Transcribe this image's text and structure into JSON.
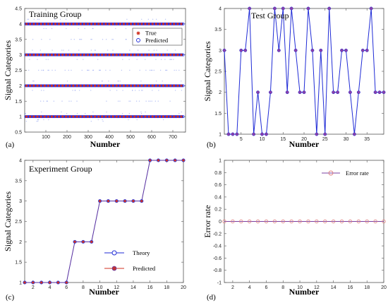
{
  "chart_data": [
    {
      "type": "scatter",
      "panel_label": "(a)",
      "title": "Training Group",
      "xlabel": "Number",
      "ylabel": "Signal Categories",
      "xlim": [
        0,
        760
      ],
      "ylim": [
        0.5,
        4.5
      ],
      "xticks": [
        100,
        200,
        300,
        400,
        500,
        600,
        700
      ],
      "yticks": [
        0.5,
        1,
        1.5,
        2,
        2.5,
        3,
        3.5,
        4,
        4.5
      ],
      "ytick_labels": [
        "0.5",
        "1",
        "1.5",
        "2",
        "2.5",
        "3",
        "3.5",
        "4",
        "4.5"
      ],
      "legend_position": "upper-right",
      "series": [
        {
          "name": "True",
          "marker": "asterisk",
          "color": "#d03020",
          "x_range": [
            1,
            750
          ],
          "y_levels": [
            1,
            2,
            3,
            4
          ]
        },
        {
          "name": "Predicted",
          "marker": "circle",
          "color": "#1f2bd6",
          "x_range": [
            1,
            750
          ],
          "y_levels": [
            1,
            2,
            3,
            4
          ]
        }
      ]
    },
    {
      "type": "line",
      "panel_label": "(b)",
      "title": "Test Group",
      "xlabel": "Number",
      "ylabel": "Signal Categories",
      "xlim": [
        1,
        39
      ],
      "ylim": [
        1,
        4
      ],
      "xticks": [
        5,
        10,
        15,
        20,
        25,
        30,
        35
      ],
      "yticks": [
        1,
        1.5,
        2,
        2.5,
        3,
        3.5,
        4
      ],
      "ytick_labels": [
        "1",
        "1.5",
        "2",
        "2.5",
        "3",
        "3.5",
        "4"
      ],
      "x": [
        1,
        2,
        3,
        4,
        5,
        6,
        7,
        8,
        9,
        10,
        11,
        12,
        13,
        14,
        15,
        16,
        17,
        18,
        19,
        20,
        21,
        22,
        23,
        24,
        25,
        26,
        27,
        28,
        29,
        30,
        31,
        32,
        33,
        34,
        35,
        36,
        37,
        38,
        39
      ],
      "values": [
        3,
        1,
        1,
        1,
        3,
        3,
        4,
        1,
        2,
        1,
        1,
        2,
        4,
        3,
        4,
        2,
        4,
        3,
        2,
        2,
        4,
        3,
        1,
        3,
        1,
        4,
        2,
        2,
        3,
        3,
        2,
        1,
        2,
        3,
        3,
        4,
        2,
        2,
        2
      ],
      "series_color": "#1f2bd6",
      "marker_color": "#8a3fa8"
    },
    {
      "type": "line",
      "panel_label": "(c)",
      "title": "Experiment Group",
      "xlabel": "Number",
      "ylabel": "Signal Categories",
      "xlim": [
        1,
        20
      ],
      "ylim": [
        1,
        4
      ],
      "xticks": [
        2,
        4,
        6,
        8,
        10,
        12,
        14,
        16,
        18,
        20
      ],
      "yticks": [
        1,
        1.5,
        2,
        2.5,
        3,
        3.5,
        4
      ],
      "ytick_labels": [
        "1",
        "1.5",
        "2",
        "2.5",
        "3",
        "3.5",
        "4"
      ],
      "x": [
        1,
        2,
        3,
        4,
        5,
        6,
        7,
        8,
        9,
        10,
        11,
        12,
        13,
        14,
        15,
        16,
        17,
        18,
        19,
        20
      ],
      "legend_position": "lower-right",
      "series": [
        {
          "name": "Theory",
          "marker": "circle",
          "color": "#1f2bd6",
          "values": [
            1,
            1,
            1,
            1,
            1,
            1,
            2,
            2,
            2,
            3,
            3,
            3,
            3,
            3,
            3,
            4,
            4,
            4,
            4,
            4
          ]
        },
        {
          "name": "Predicted",
          "marker": "asterisk",
          "color": "#d03020",
          "values": [
            1,
            1,
            1,
            1,
            1,
            1,
            2,
            2,
            2,
            3,
            3,
            3,
            3,
            3,
            3,
            4,
            4,
            4,
            4,
            4
          ]
        }
      ]
    },
    {
      "type": "line",
      "panel_label": "(d)",
      "xlabel": "Number",
      "ylabel": "Error rate",
      "xlim": [
        1,
        20
      ],
      "ylim": [
        -1,
        1
      ],
      "xticks": [
        2,
        4,
        6,
        8,
        10,
        12,
        14,
        16,
        18,
        20
      ],
      "yticks": [
        -1,
        -0.8,
        -0.6,
        -0.4,
        -0.2,
        0,
        0.2,
        0.4,
        0.6,
        0.8,
        1
      ],
      "ytick_labels": [
        "-1",
        "-0.8",
        "-0.6",
        "-0.4",
        "-0.2",
        "0",
        "0.2",
        "0.4",
        "0.6",
        "0.8",
        "1"
      ],
      "x": [
        1,
        2,
        3,
        4,
        5,
        6,
        7,
        8,
        9,
        10,
        11,
        12,
        13,
        14,
        15,
        16,
        17,
        18,
        19,
        20
      ],
      "legend_position": "upper-right",
      "series": [
        {
          "name": "Error rate",
          "marker": "circle",
          "color": "#7a3fa0",
          "marker_color": "#e08080",
          "values": [
            0,
            0,
            0,
            0,
            0,
            0,
            0,
            0,
            0,
            0,
            0,
            0,
            0,
            0,
            0,
            0,
            0,
            0,
            0,
            0
          ]
        }
      ]
    }
  ]
}
